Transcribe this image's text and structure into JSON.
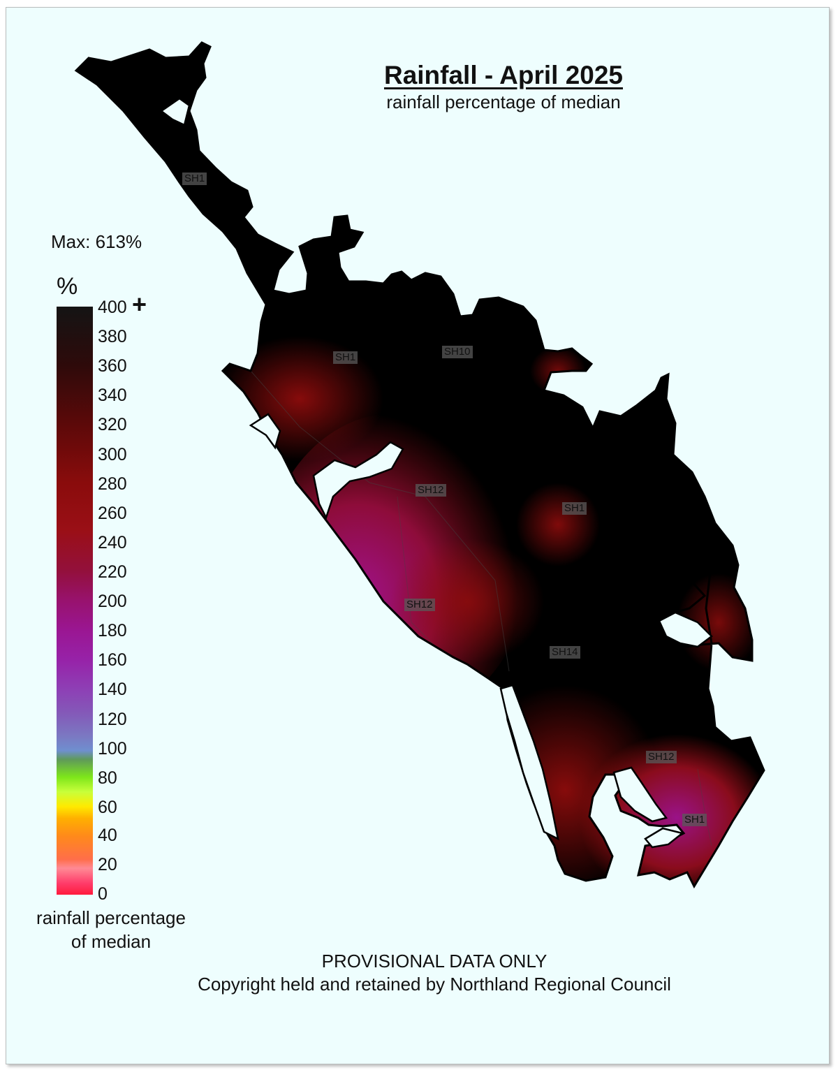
{
  "title": "Rainfall - April 2025",
  "subtitle": "rainfall percentage of median",
  "max_label": "Max:  613%",
  "legend": {
    "unit": "%",
    "ticks": [
      "400",
      "380",
      "360",
      "340",
      "320",
      "300",
      "280",
      "260",
      "240",
      "220",
      "200",
      "180",
      "160",
      "140",
      "120",
      "100",
      "80",
      "60",
      "40",
      "20",
      "0"
    ],
    "plus": "+",
    "caption_line1": "rainfall percentage",
    "caption_line2": "of median"
  },
  "road_labels": [
    "SH1",
    "SH1",
    "SH10",
    "SH12",
    "SH1",
    "SH12",
    "SH14",
    "SH12",
    "SH1"
  ],
  "footer": {
    "line1": "PROVISIONAL DATA ONLY",
    "line2": "Copyright held and retained by Northland Regional Council"
  },
  "colors": {
    "background": "#eefefe",
    "high": "#000000",
    "mid_high": "#8a0c0c",
    "mid": "#9a1692",
    "low": "#ff1a3c"
  }
}
